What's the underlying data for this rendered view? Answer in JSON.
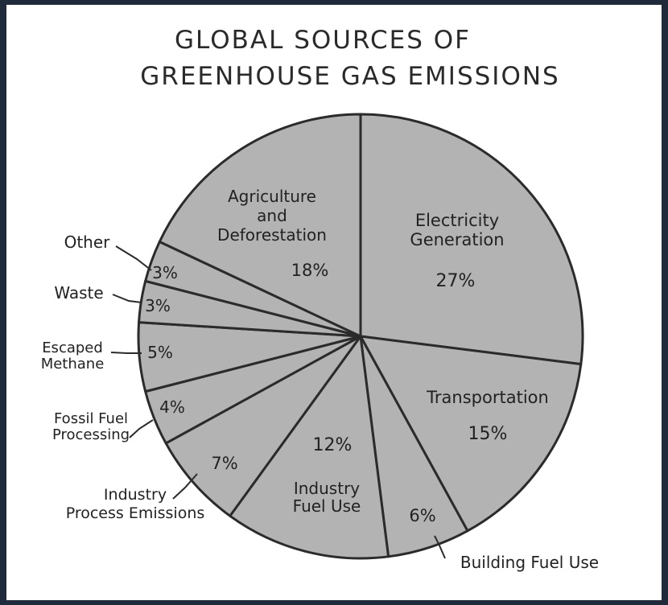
{
  "chart_data": {
    "type": "pie",
    "title": [
      "GLOBAL SOURCES OF",
      "GREENHOUSE GAS EMISSIONS"
    ],
    "slice_color": "#b3b3b3",
    "stroke_color": "#2b2b2b",
    "slices": [
      {
        "name": [
          "Electricity",
          "Generation"
        ],
        "value": 27,
        "label": "27%"
      },
      {
        "name": [
          "Transportation"
        ],
        "value": 15,
        "label": "15%"
      },
      {
        "name": [
          "Building Fuel Use"
        ],
        "value": 6,
        "label": "6%"
      },
      {
        "name": [
          "Industry",
          "Fuel Use"
        ],
        "value": 12,
        "label": "12%"
      },
      {
        "name": [
          "Industry",
          "Process Emissions"
        ],
        "value": 7,
        "label": "7%"
      },
      {
        "name": [
          "Fossil Fuel",
          "Processing"
        ],
        "value": 4,
        "label": "4%"
      },
      {
        "name": [
          "Escaped",
          "Methane"
        ],
        "value": 5,
        "label": "5%"
      },
      {
        "name": [
          "Waste"
        ],
        "value": 3,
        "label": "3%"
      },
      {
        "name": [
          "Other"
        ],
        "value": 3,
        "label": "3%"
      },
      {
        "name": [
          "Agriculture",
          "and",
          "Deforestation"
        ],
        "value": 18,
        "label": "18%"
      }
    ]
  }
}
